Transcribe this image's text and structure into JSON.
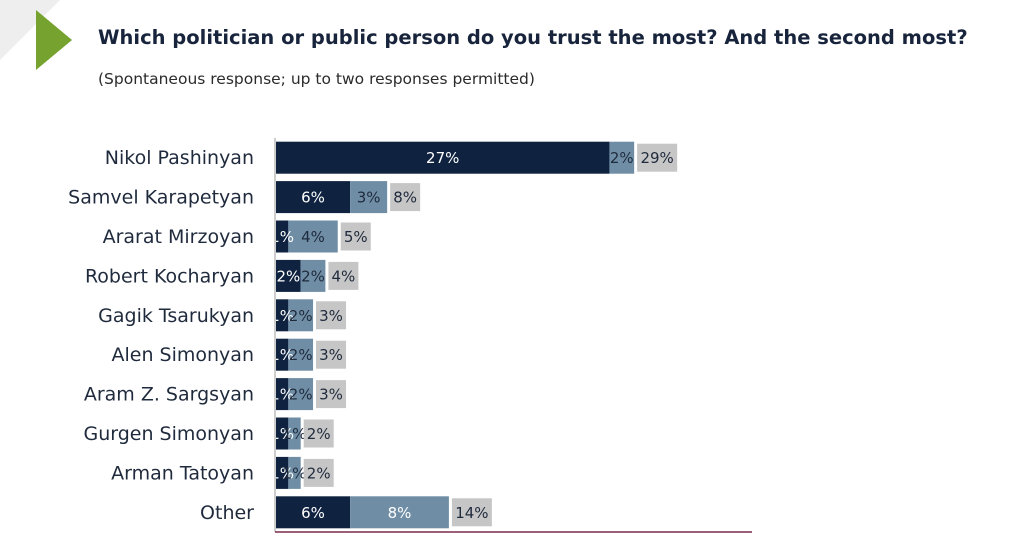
{
  "header": {
    "title": "Which politician or public person do you trust the most? And the second most?",
    "subtitle": "(Spontaneous response; up to two responses permitted)"
  },
  "colors": {
    "accent_triangle": "#76a32f",
    "corner_gray": "#eeeeee",
    "first_mention": "#0f2340",
    "second_mention": "#6f8ea6",
    "total": "#c6c6c6",
    "axis_line": "#7a2a4a"
  },
  "chart_data": {
    "type": "bar",
    "orientation": "horizontal",
    "stacked": true,
    "categories": [
      "Nikol Pashinyan",
      "Samvel Karapetyan",
      "Ararat Mirzoyan",
      "Robert Kocharyan",
      "Gagik Tsarukyan",
      "Alen Simonyan",
      "Aram Z. Sargsyan",
      "Gurgen Simonyan",
      "Arman Tatoyan",
      "Other"
    ],
    "series": [
      {
        "values": [
          27,
          6,
          1,
          2,
          1,
          1,
          1,
          1,
          1,
          6
        ],
        "labels": [
          "27%",
          "6%",
          "1%",
          "2%",
          "1%",
          "1%",
          "1%",
          "1%",
          "1%",
          "6%"
        ]
      },
      {
        "values": [
          2,
          3,
          4,
          2,
          2,
          2,
          2,
          1,
          1,
          8
        ],
        "labels": [
          "2%",
          "3%",
          "4%",
          "2%",
          "2%",
          "2%",
          "2%",
          "1%",
          "1%",
          "8%"
        ]
      },
      {
        "values": [
          29,
          8,
          5,
          4,
          3,
          3,
          3,
          2,
          2,
          14
        ],
        "labels": [
          "29%",
          "8%",
          "5%",
          "4%",
          "3%",
          "3%",
          "3%",
          "2%",
          "2%",
          "14%"
        ]
      }
    ],
    "xlabel": "",
    "ylabel": "",
    "grid": false,
    "legend": "none"
  }
}
